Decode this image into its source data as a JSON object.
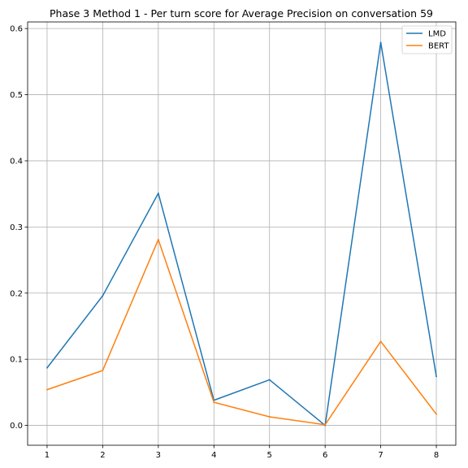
{
  "chart_data": {
    "type": "line",
    "title": "Phase 3 Method 1 - Per turn score for Average Precision on conversation 59",
    "xlabel": "",
    "ylabel": "",
    "x": [
      1,
      2,
      3,
      4,
      5,
      6,
      7,
      8
    ],
    "xticks": [
      "1",
      "2",
      "3",
      "4",
      "5",
      "6",
      "7",
      "8"
    ],
    "yticks": [
      "0.0",
      "0.1",
      "0.2",
      "0.3",
      "0.4",
      "0.5",
      "0.6"
    ],
    "xlim": [
      0.65,
      8.35
    ],
    "ylim": [
      -0.03,
      0.61
    ],
    "grid": true,
    "legend_position": "top-right",
    "series": [
      {
        "name": "LMD",
        "color": "#1f77b4",
        "values": [
          0.087,
          0.196,
          0.351,
          0.038,
          0.069,
          0.0,
          0.579,
          0.074
        ]
      },
      {
        "name": "BERT",
        "color": "#ff7f0e",
        "values": [
          0.054,
          0.083,
          0.281,
          0.035,
          0.013,
          0.001,
          0.127,
          0.017
        ]
      }
    ]
  }
}
